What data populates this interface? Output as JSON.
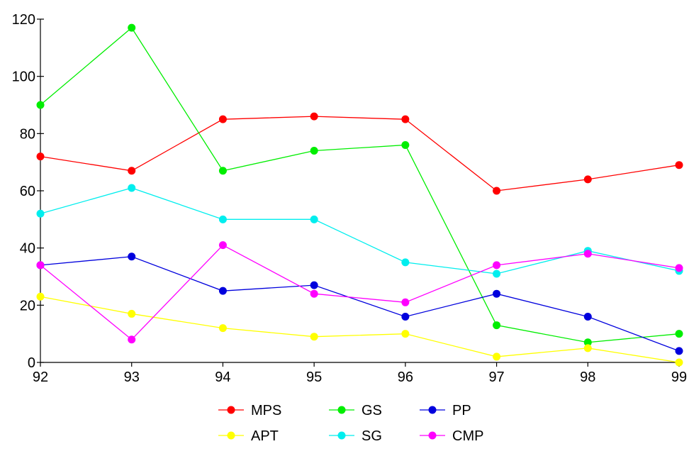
{
  "chart_data": {
    "type": "line",
    "categories": [
      "92",
      "93",
      "94",
      "95",
      "96",
      "97",
      "98",
      "99"
    ],
    "ylim": [
      0,
      120
    ],
    "yticks": [
      "0",
      "20",
      "40",
      "60",
      "80",
      "100",
      "120"
    ],
    "grid": false,
    "legend_position": "bottom",
    "series": [
      {
        "name": "MPS",
        "color": "#ff0000",
        "values": [
          72,
          67,
          85,
          86,
          85,
          60,
          64,
          69
        ]
      },
      {
        "name": "GS",
        "color": "#00ee00",
        "values": [
          90,
          117,
          67,
          74,
          76,
          13,
          7,
          10
        ]
      },
      {
        "name": "PP",
        "color": "#0000dd",
        "values": [
          34,
          37,
          25,
          27,
          16,
          24,
          16,
          4
        ]
      },
      {
        "name": "APT",
        "color": "#ffff00",
        "values": [
          23,
          17,
          12,
          9,
          10,
          2,
          5,
          0
        ]
      },
      {
        "name": "SG",
        "color": "#00eeee",
        "values": [
          52,
          61,
          50,
          50,
          35,
          31,
          39,
          32
        ]
      },
      {
        "name": "CMP",
        "color": "#ff00ff",
        "values": [
          34,
          8,
          41,
          24,
          21,
          34,
          38,
          33
        ]
      }
    ]
  }
}
